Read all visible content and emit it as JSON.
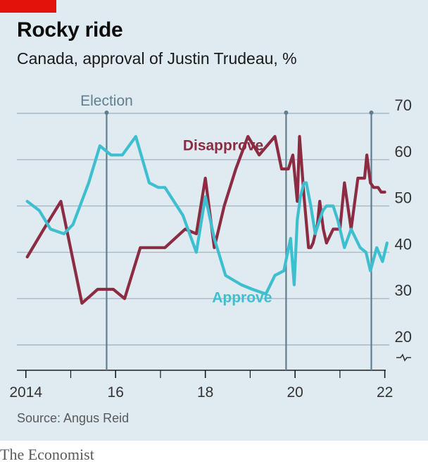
{
  "header": {
    "title": "Rocky ride",
    "subtitle": "Canada, approval of Justin Trudeau, %"
  },
  "footer": {
    "source": "Source: Angus Reid",
    "brand": "The Economist"
  },
  "colors": {
    "approve": "#3ebfcf",
    "disapprove": "#8b2c43",
    "election": "#5e7f8f",
    "grid": "#a8b8c4",
    "background": "#e0eaf1",
    "brand_red": "#e3120b"
  },
  "chart_data": {
    "type": "line",
    "xlim": [
      2013.8,
      2022.1
    ],
    "ylim": [
      15,
      70
    ],
    "y_ticks": [
      20,
      30,
      40,
      50,
      60,
      70
    ],
    "y_tick_labels": [
      "20",
      "30",
      "40",
      "50",
      "60",
      "70"
    ],
    "y_axis_break": true,
    "x_ticks": [
      2014,
      2016,
      2018,
      2020,
      2022
    ],
    "x_tick_labels": [
      "2014",
      "16",
      "18",
      "20",
      "22"
    ],
    "x_minor_ticks": [
      2015,
      2017,
      2019,
      2021
    ],
    "grid": true,
    "elections": [
      {
        "x": 2015.8,
        "label": "Election"
      },
      {
        "x": 2019.8,
        "label": ""
      },
      {
        "x": 2021.7,
        "label": ""
      }
    ],
    "series": [
      {
        "name": "Disapprove",
        "key": "disapprove",
        "label_at": [
          2017.5,
          62
        ],
        "x": [
          2014.03,
          2014.4,
          2014.78,
          2015.25,
          2015.6,
          2015.95,
          2016.2,
          2016.55,
          2016.7,
          2017.1,
          2017.55,
          2017.8,
          2018.0,
          2018.2,
          2018.42,
          2018.68,
          2018.95,
          2019.2,
          2019.55,
          2019.7,
          2019.85,
          2019.95,
          2020.05,
          2020.1,
          2020.2,
          2020.3,
          2020.35,
          2020.4,
          2020.5,
          2020.55,
          2020.63,
          2020.7,
          2020.85,
          2020.95,
          2021.0,
          2021.1,
          2021.25,
          2021.4,
          2021.55,
          2021.6,
          2021.68,
          2021.75,
          2021.85,
          2021.92,
          2022.0
        ],
        "y": [
          39,
          45,
          51,
          29,
          32,
          32,
          30,
          41,
          41,
          41,
          45,
          44,
          56,
          41,
          50,
          58,
          65,
          61,
          65,
          58,
          58,
          61,
          51,
          65,
          52,
          41,
          41,
          42,
          46,
          51,
          45,
          42,
          45,
          45,
          45,
          55,
          45,
          56,
          56,
          61,
          55,
          54,
          54,
          53,
          53
        ]
      },
      {
        "name": "Approve",
        "key": "approve",
        "label_at": [
          2018.15,
          29.2
        ],
        "x": [
          2014.03,
          2014.3,
          2014.55,
          2014.85,
          2015.05,
          2015.4,
          2015.65,
          2015.9,
          2016.15,
          2016.45,
          2016.75,
          2016.95,
          2017.1,
          2017.5,
          2017.8,
          2018.0,
          2018.2,
          2018.45,
          2018.8,
          2019.05,
          2019.35,
          2019.55,
          2019.75,
          2019.9,
          2019.98,
          2020.05,
          2020.12,
          2020.2,
          2020.25,
          2020.35,
          2020.45,
          2020.55,
          2020.62,
          2020.7,
          2020.85,
          2020.95,
          2021.1,
          2021.25,
          2021.45,
          2021.58,
          2021.68,
          2021.82,
          2021.95,
          2022.05
        ],
        "y": [
          51,
          49,
          45,
          44,
          46,
          55,
          63,
          61,
          61,
          65,
          55,
          54,
          54,
          48,
          40,
          52,
          43,
          35,
          33,
          32,
          31,
          35,
          36,
          43,
          33,
          47,
          52,
          55,
          55,
          50,
          44,
          47,
          49,
          50,
          50,
          47,
          41,
          45,
          41,
          40,
          36,
          41,
          38,
          42
        ]
      }
    ]
  }
}
